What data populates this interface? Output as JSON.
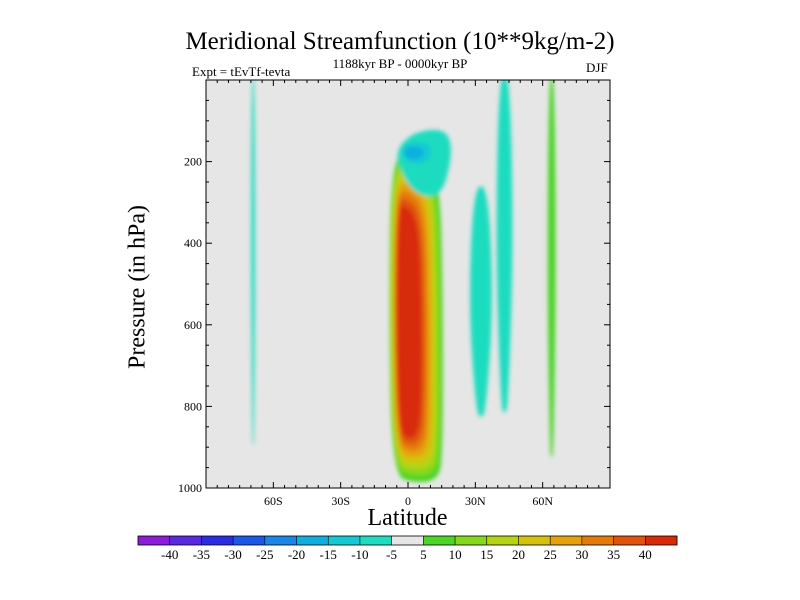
{
  "chart_data": {
    "type": "heatmap",
    "title": "Meridional Streamfunction (10**9kg/m-2)",
    "subtitle": "1188kyr BP - 0000kyr BP",
    "left_annotation": "Expt = tEvTf-tevta",
    "right_annotation": "DJF",
    "xlabel": "Latitude",
    "ylabel": "Pressure (in hPa)",
    "xlim": [
      -90,
      90
    ],
    "ylim": [
      1000,
      0
    ],
    "x_ticks": [
      {
        "value": -60,
        "label": "60S"
      },
      {
        "value": -30,
        "label": "30S"
      },
      {
        "value": 0,
        "label": "0"
      },
      {
        "value": 30,
        "label": "30N"
      },
      {
        "value": 60,
        "label": "60N"
      }
    ],
    "y_ticks": [
      {
        "value": 200,
        "label": "200"
      },
      {
        "value": 400,
        "label": "400"
      },
      {
        "value": 600,
        "label": "600"
      },
      {
        "value": 800,
        "label": "800"
      },
      {
        "value": 1000,
        "label": "1000"
      }
    ],
    "background_color": "#e6e6e6",
    "colorbar": {
      "levels": [
        -40,
        -35,
        -30,
        -25,
        -20,
        -15,
        -10,
        -5,
        5,
        10,
        15,
        20,
        25,
        30,
        35,
        40
      ],
      "labels": [
        "-40",
        "-35",
        "-30",
        "-25",
        "-20",
        "-15",
        "-10",
        "-5",
        "5",
        "10",
        "15",
        "20",
        "25",
        "30",
        "35",
        "40"
      ],
      "colors": [
        "#8c1cd9",
        "#5a2ae0",
        "#2a2ee0",
        "#1a58e6",
        "#1a86e6",
        "#10aee0",
        "#14c8d4",
        "#1fdcc0",
        "#e6e6e6",
        "#4cd426",
        "#86d81c",
        "#b6d414",
        "#d6c20c",
        "#e6a00a",
        "#e47a0a",
        "#e0520e",
        "#d82a0a"
      ]
    },
    "features": [
      {
        "name": "tropical-positive-cell",
        "sign": "positive",
        "lat_range": [
          -8,
          15
        ],
        "p_range": [
          180,
          980
        ],
        "peak": 40,
        "peak_lat": 0,
        "peak_p": 700
      },
      {
        "name": "upper-negative-cell",
        "sign": "negative",
        "lat_range": [
          -4,
          20
        ],
        "p_range": [
          120,
          290
        ],
        "peak": -20,
        "peak_lat": 5,
        "peak_p": 180
      },
      {
        "name": "southern-high-lat-negative-band",
        "sign": "negative",
        "lat_range": [
          -70,
          -68
        ],
        "p_range": [
          0,
          900
        ],
        "peak": -5
      },
      {
        "name": "northern-subtropical-negative-cell",
        "sign": "negative",
        "lat_range": [
          27,
          38
        ],
        "p_range": [
          280,
          830
        ],
        "peak": -5
      },
      {
        "name": "northern-midlat-negative-band",
        "sign": "negative",
        "lat_range": [
          39,
          47
        ],
        "p_range": [
          0,
          820
        ],
        "peak": -5
      },
      {
        "name": "northern-high-lat-positive-band",
        "sign": "positive",
        "lat_range": [
          62,
          66
        ],
        "p_range": [
          0,
          930
        ],
        "peak": 5
      }
    ]
  }
}
